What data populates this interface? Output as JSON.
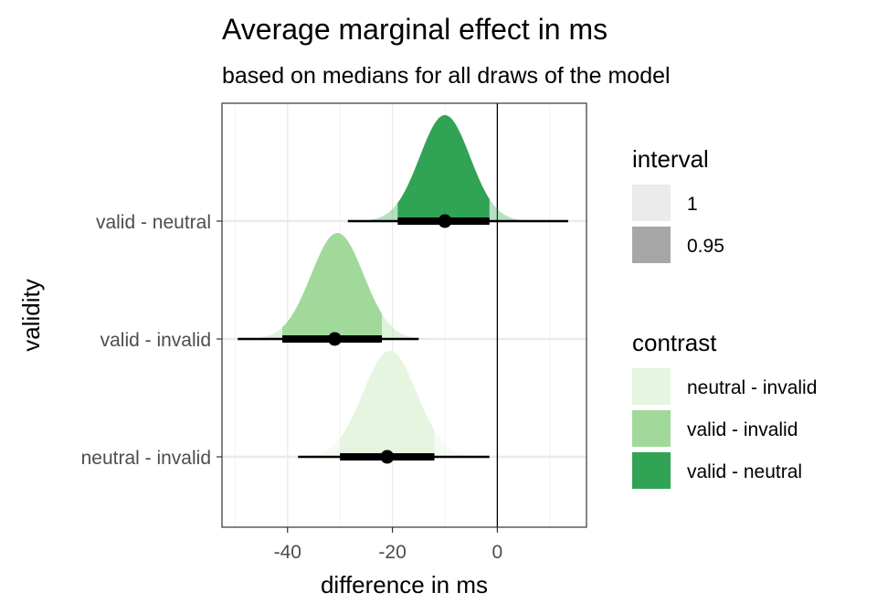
{
  "chart_data": {
    "type": "halfeye",
    "title": "Average marginal effect in ms",
    "subtitle": "based on medians for all draws of the model",
    "xlabel": "difference in ms",
    "ylabel": "validity",
    "xlim": [
      -52.5,
      17.0
    ],
    "x_ticks": [
      -40,
      -20,
      0
    ],
    "x_tick_labels": [
      "-40",
      "-20",
      "0"
    ],
    "reference_line_x": 0,
    "grid": true,
    "categories": [
      "neutral - invalid",
      "valid - invalid",
      "valid - neutral"
    ],
    "series": [
      {
        "name": "neutral - invalid",
        "color": "#e5f5e0",
        "median": -21,
        "density_mode": -20.5,
        "interval_095": [
          -30,
          -12
        ],
        "interval_1": [
          -38,
          -1.5
        ],
        "density_sd": 5.1
      },
      {
        "name": "valid - invalid",
        "color": "#a1d99b",
        "median": -31,
        "density_mode": -30.5,
        "interval_095": [
          -41,
          -22
        ],
        "interval_1": [
          -49.5,
          -15
        ],
        "density_sd": 5.0
      },
      {
        "name": "valid - neutral",
        "color": "#31a354",
        "median": -10,
        "density_mode": -10,
        "interval_095": [
          -19,
          -1.5
        ],
        "interval_1": [
          -28.5,
          13.5
        ],
        "density_sd": 4.8
      }
    ],
    "legends": [
      {
        "title": "interval",
        "position": "right",
        "items": [
          {
            "label": "1",
            "color": "#ebebeb"
          },
          {
            "label": "0.95",
            "color": "#a6a6a6"
          }
        ]
      },
      {
        "title": "contrast",
        "position": "right",
        "items": [
          {
            "label": "neutral - invalid",
            "color": "#e5f5e0"
          },
          {
            "label": "valid - invalid",
            "color": "#a1d99b"
          },
          {
            "label": "valid - neutral",
            "color": "#31a354"
          }
        ]
      }
    ]
  }
}
